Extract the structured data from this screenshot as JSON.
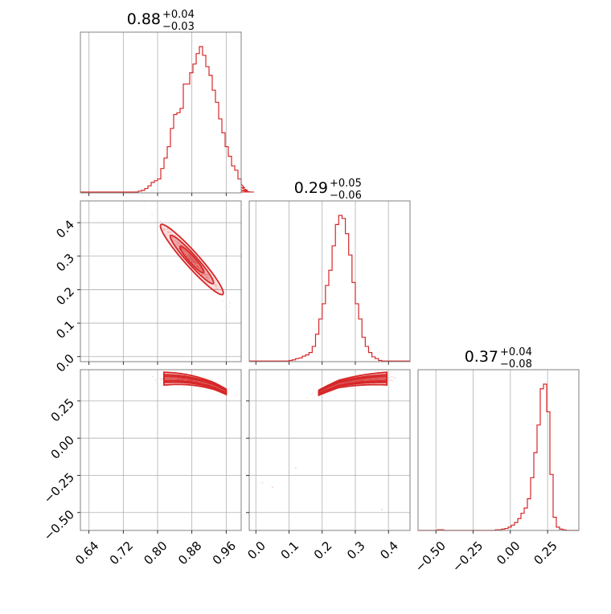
{
  "chart_data": {
    "type": "corner",
    "grid": true,
    "color": "#d62728",
    "params": [
      {
        "median": "0.88",
        "plus": "+0.04",
        "minus": "−0.03",
        "xticks": [
          0.64,
          0.72,
          0.8,
          0.88,
          0.96
        ],
        "xticklabels": [
          "0.64",
          "0.72",
          "0.80",
          "0.88",
          "0.96"
        ],
        "range": [
          0.62,
          0.995
        ]
      },
      {
        "median": "0.29",
        "plus": "+0.05",
        "minus": "−0.06",
        "xticks": [
          0.0,
          0.1,
          0.2,
          0.3,
          0.4
        ],
        "xticklabels": [
          "0.0",
          "0.1",
          "0.2",
          "0.3",
          "0.4"
        ],
        "range": [
          -0.02,
          0.465
        ]
      },
      {
        "median": "0.37",
        "plus": "+0.04",
        "minus": "−0.08",
        "xticks": [
          -0.5,
          -0.25,
          0.0,
          0.25
        ],
        "xticklabels": [
          "−0.50",
          "−0.25",
          "0.00",
          "0.25"
        ],
        "range": [
          -0.62,
          0.46
        ]
      }
    ],
    "y_ticks_row2": {
      "values": [
        0.0,
        0.1,
        0.2,
        0.3,
        0.4
      ],
      "labels": [
        "0.0",
        "0.1",
        "0.2",
        "0.3",
        "0.4"
      ]
    },
    "y_ticks_row3": {
      "values": [
        -0.5,
        -0.25,
        0.0,
        0.25
      ],
      "labels": [
        "−0.50",
        "−0.25",
        "0.00",
        "0.25"
      ]
    },
    "hist1": {
      "edges_start": 0.62,
      "bin_width": 0.0075,
      "counts": [
        1,
        1,
        1,
        1,
        1,
        1,
        1,
        1,
        1,
        1,
        1,
        1,
        1,
        1,
        1,
        1,
        1,
        1,
        2,
        3,
        5,
        8,
        12,
        14,
        16,
        28,
        40,
        53,
        74,
        90,
        92,
        97,
        125,
        125,
        138,
        148,
        160,
        168,
        158,
        145,
        135,
        118,
        104,
        85,
        69,
        53,
        42,
        31,
        26,
        16,
        10,
        6,
        3,
        1,
        1
      ]
    },
    "hist2": {
      "edges_start": -0.02,
      "bin_width": 0.01,
      "counts": [
        1,
        1,
        1,
        1,
        1,
        1,
        1,
        1,
        1,
        1,
        1,
        1,
        2,
        3,
        5,
        6,
        9,
        11,
        15,
        25,
        45,
        70,
        95,
        125,
        150,
        190,
        225,
        240,
        235,
        210,
        175,
        130,
        95,
        70,
        40,
        25,
        15,
        8,
        5,
        2,
        1,
        1,
        1,
        1,
        1,
        1,
        1,
        1,
        1
      ]
    },
    "hist3": {
      "edges_start": -0.62,
      "bin_width": 0.0216,
      "counts": [
        0,
        0,
        0,
        0,
        0,
        0,
        1,
        1,
        0,
        0,
        0,
        0,
        0,
        0,
        0,
        0,
        0,
        0,
        0,
        0,
        0,
        0,
        0,
        0,
        1,
        1,
        2,
        3,
        5,
        8,
        12,
        18,
        26,
        34,
        48,
        80,
        118,
        160,
        215,
        222,
        180,
        85,
        20,
        5,
        2,
        1,
        0,
        0,
        0,
        0
      ]
    },
    "scatter_p1_p2": {
      "center": [
        0.88,
        0.29
      ],
      "spread": [
        0.035,
        0.045
      ],
      "correlation": -0.97
    },
    "scatter_p1_p3": {
      "center": [
        0.88,
        0.37
      ],
      "spread": [
        0.035,
        0.06
      ],
      "correlation": -0.9
    },
    "scatter_p2_p3": {
      "center": [
        0.29,
        0.37
      ],
      "spread": [
        0.05,
        0.06
      ],
      "correlation": 0.95
    }
  }
}
